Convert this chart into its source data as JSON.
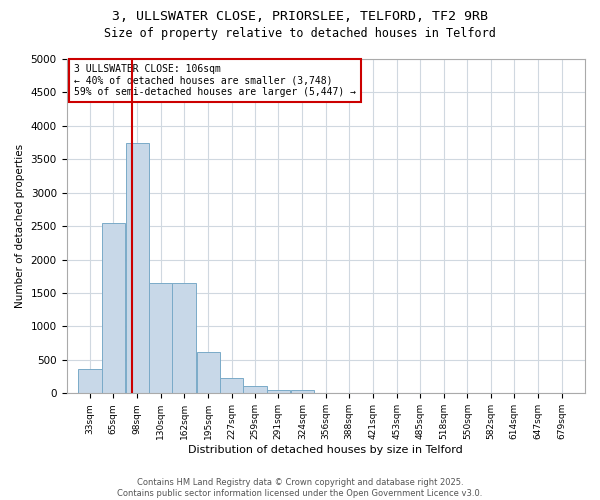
{
  "title1": "3, ULLSWATER CLOSE, PRIORSLEE, TELFORD, TF2 9RB",
  "title2": "Size of property relative to detached houses in Telford",
  "xlabel": "Distribution of detached houses by size in Telford",
  "ylabel": "Number of detached properties",
  "bar_edges": [
    33,
    65,
    98,
    130,
    162,
    195,
    227,
    259,
    291,
    324,
    356,
    388,
    421,
    453,
    485,
    518,
    550,
    582,
    614,
    647,
    679
  ],
  "bar_heights": [
    370,
    2550,
    3750,
    1650,
    1650,
    620,
    230,
    110,
    55,
    55,
    0,
    0,
    0,
    0,
    0,
    0,
    0,
    0,
    0,
    0
  ],
  "bar_color": "#c8d8e8",
  "bar_edge_color": "#7aaac8",
  "vline_x": 106,
  "vline_color": "#cc0000",
  "annotation_text": "3 ULLSWATER CLOSE: 106sqm\n← 40% of detached houses are smaller (3,748)\n59% of semi-detached houses are larger (5,447) →",
  "annotation_box_color": "#cc0000",
  "ylim": [
    0,
    5000
  ],
  "yticks": [
    0,
    500,
    1000,
    1500,
    2000,
    2500,
    3000,
    3500,
    4000,
    4500,
    5000
  ],
  "footer1": "Contains HM Land Registry data © Crown copyright and database right 2025.",
  "footer2": "Contains public sector information licensed under the Open Government Licence v3.0.",
  "bg_color": "#ffffff",
  "plot_bg_color": "#ffffff",
  "grid_color": "#d0d8e0"
}
